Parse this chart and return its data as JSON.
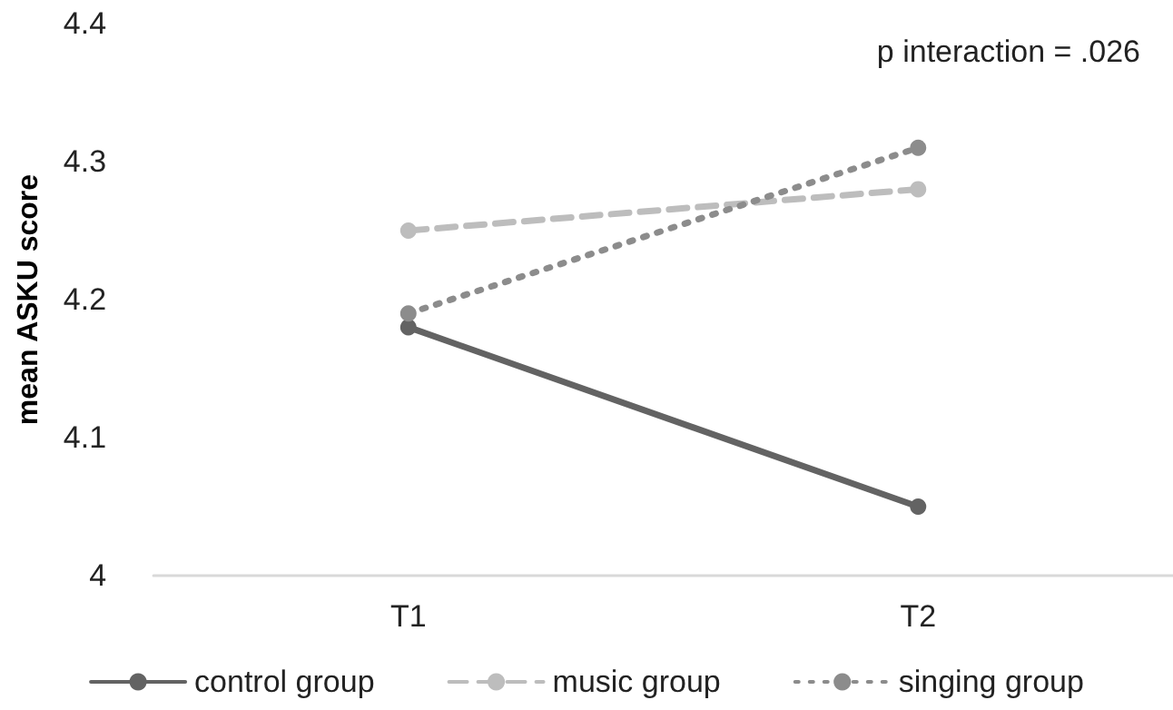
{
  "chart_data": {
    "type": "line",
    "ylabel": "mean ASKU score",
    "categories": [
      "T1",
      "T2"
    ],
    "series": [
      {
        "name": "control group",
        "color": "#636363",
        "values": [
          4.18,
          4.05
        ],
        "line_style": "solid"
      },
      {
        "name": "music group",
        "color": "#bdbdbd",
        "values": [
          4.25,
          4.28
        ],
        "line_style": "dashed"
      },
      {
        "name": "singing group",
        "color": "#8c8c8c",
        "values": [
          4.19,
          4.31
        ],
        "line_style": "dotted"
      }
    ],
    "ylim": [
      4,
      4.4
    ],
    "yticks": [
      4,
      4.1,
      4.2,
      4.3,
      4.4
    ],
    "grid": false,
    "legend": "bottom",
    "marker": "circle",
    "annotations": [
      "p interaction = .026"
    ]
  }
}
